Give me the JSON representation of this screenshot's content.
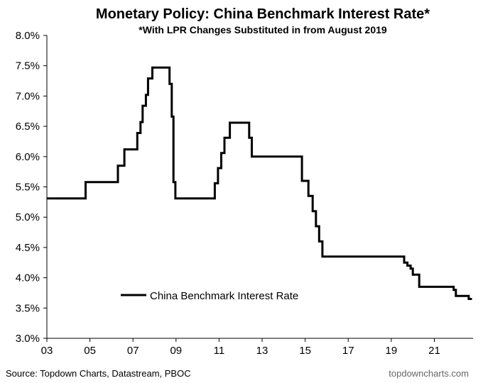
{
  "chart_data": {
    "type": "line",
    "title": "Monetary Policy: China Benchmark Interest Rate*",
    "subtitle": "*With LPR Changes Substituted in from August 2019",
    "source": "Source: Topdown Charts, Datastream, PBOC",
    "watermark": "topdowncharts.com",
    "xlabel": "",
    "ylabel": "",
    "xlim": [
      2003,
      2022.8
    ],
    "ylim": [
      3.0,
      8.0
    ],
    "x_ticks": [
      2003,
      2005,
      2007,
      2009,
      2011,
      2013,
      2015,
      2017,
      2019,
      2021
    ],
    "x_tick_labels": [
      "03",
      "05",
      "07",
      "09",
      "11",
      "13",
      "15",
      "17",
      "19",
      "21"
    ],
    "y_ticks": [
      3.0,
      3.5,
      4.0,
      4.5,
      5.0,
      5.5,
      6.0,
      6.5,
      7.0,
      7.5,
      8.0
    ],
    "y_tick_labels": [
      "3.0%",
      "3.5%",
      "4.0%",
      "4.5%",
      "5.0%",
      "5.5%",
      "6.0%",
      "6.5%",
      "7.0%",
      "7.5%",
      "8.0%"
    ],
    "grid": false,
    "legend": "inside-lower-left",
    "line_color": "#000000",
    "series": [
      {
        "name": "China Benchmark Interest Rate",
        "points": [
          [
            2003.0,
            5.31
          ],
          [
            2004.8,
            5.31
          ],
          [
            2004.8,
            5.58
          ],
          [
            2006.3,
            5.58
          ],
          [
            2006.3,
            5.85
          ],
          [
            2006.6,
            5.85
          ],
          [
            2006.6,
            6.12
          ],
          [
            2007.2,
            6.12
          ],
          [
            2007.2,
            6.39
          ],
          [
            2007.35,
            6.39
          ],
          [
            2007.35,
            6.57
          ],
          [
            2007.45,
            6.57
          ],
          [
            2007.45,
            6.84
          ],
          [
            2007.6,
            6.84
          ],
          [
            2007.6,
            7.02
          ],
          [
            2007.7,
            7.02
          ],
          [
            2007.7,
            7.29
          ],
          [
            2007.9,
            7.29
          ],
          [
            2007.9,
            7.47
          ],
          [
            2008.7,
            7.47
          ],
          [
            2008.7,
            7.2
          ],
          [
            2008.8,
            7.2
          ],
          [
            2008.8,
            6.66
          ],
          [
            2008.88,
            6.66
          ],
          [
            2008.88,
            5.58
          ],
          [
            2008.97,
            5.58
          ],
          [
            2008.97,
            5.31
          ],
          [
            2010.8,
            5.31
          ],
          [
            2010.8,
            5.56
          ],
          [
            2010.95,
            5.56
          ],
          [
            2010.95,
            5.81
          ],
          [
            2011.1,
            5.81
          ],
          [
            2011.1,
            6.06
          ],
          [
            2011.25,
            6.06
          ],
          [
            2011.25,
            6.31
          ],
          [
            2011.5,
            6.31
          ],
          [
            2011.5,
            6.56
          ],
          [
            2012.4,
            6.56
          ],
          [
            2012.4,
            6.31
          ],
          [
            2012.52,
            6.31
          ],
          [
            2012.52,
            6.0
          ],
          [
            2014.85,
            6.0
          ],
          [
            2014.85,
            5.6
          ],
          [
            2015.15,
            5.6
          ],
          [
            2015.15,
            5.35
          ],
          [
            2015.35,
            5.35
          ],
          [
            2015.35,
            5.1
          ],
          [
            2015.5,
            5.1
          ],
          [
            2015.5,
            4.85
          ],
          [
            2015.65,
            4.85
          ],
          [
            2015.65,
            4.6
          ],
          [
            2015.8,
            4.6
          ],
          [
            2015.8,
            4.35
          ],
          [
            2019.6,
            4.35
          ],
          [
            2019.6,
            4.25
          ],
          [
            2019.75,
            4.25
          ],
          [
            2019.75,
            4.2
          ],
          [
            2019.9,
            4.2
          ],
          [
            2019.9,
            4.15
          ],
          [
            2020.0,
            4.15
          ],
          [
            2020.0,
            4.05
          ],
          [
            2020.3,
            4.05
          ],
          [
            2020.3,
            3.85
          ],
          [
            2021.9,
            3.85
          ],
          [
            2021.9,
            3.8
          ],
          [
            2022.0,
            3.8
          ],
          [
            2022.0,
            3.7
          ],
          [
            2022.6,
            3.7
          ],
          [
            2022.6,
            3.65
          ],
          [
            2022.75,
            3.65
          ]
        ]
      }
    ]
  }
}
